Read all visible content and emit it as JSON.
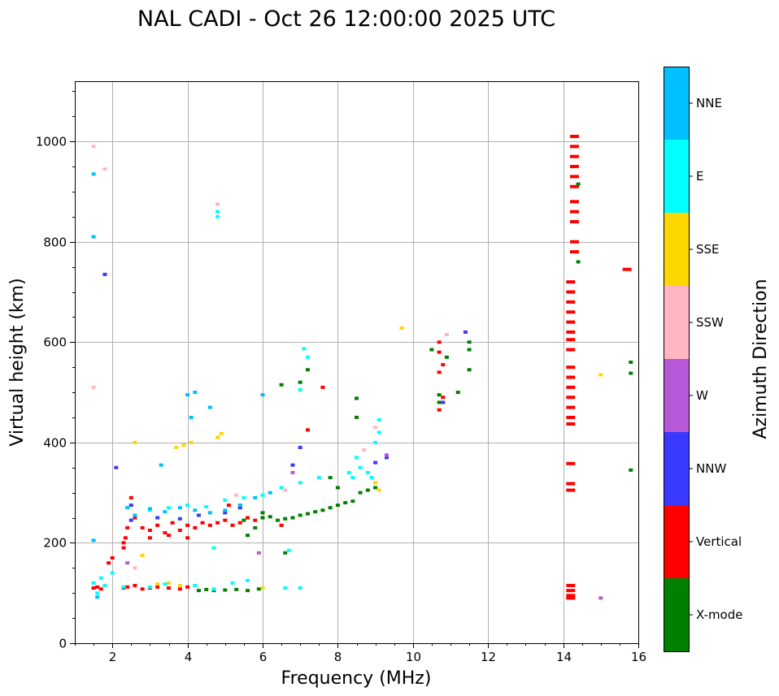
{
  "chart_data": {
    "type": "scatter",
    "title": "NAL CADI - Oct 26 12:00:00 2025 UTC",
    "xlabel": "Frequency (MHz)",
    "ylabel": "Virtual height (km)",
    "xlim": [
      1,
      16
    ],
    "ylim": [
      0,
      1120
    ],
    "xticks": [
      2,
      4,
      6,
      8,
      10,
      12,
      14,
      16
    ],
    "yticks": [
      0,
      200,
      400,
      600,
      800,
      1000
    ],
    "grid": true,
    "colorbar": {
      "title": "Azimuth Direction",
      "categories": [
        {
          "name": "X-mode",
          "color": "#008000"
        },
        {
          "name": "Vertical",
          "color": "#ff0000"
        },
        {
          "name": "NNW",
          "color": "#3a3aff"
        },
        {
          "name": "W",
          "color": "#b658d8"
        },
        {
          "name": "SSW",
          "color": "#ffb6c1"
        },
        {
          "name": "SSE",
          "color": "#ffd700"
        },
        {
          "name": "E",
          "color": "#00ffff"
        },
        {
          "name": "NNE",
          "color": "#00bfff"
        }
      ]
    },
    "series": [
      {
        "name": "Vertical",
        "points": [
          [
            1.5,
            110
          ],
          [
            1.6,
            112
          ],
          [
            1.7,
            108
          ],
          [
            1.8,
            115
          ],
          [
            1.9,
            160
          ],
          [
            2.0,
            170
          ],
          [
            2.3,
            110
          ],
          [
            2.4,
            112
          ],
          [
            2.6,
            115
          ],
          [
            2.8,
            108
          ],
          [
            3.0,
            110
          ],
          [
            3.2,
            112
          ],
          [
            3.5,
            110
          ],
          [
            3.8,
            108
          ],
          [
            4.0,
            112
          ],
          [
            2.3,
            190
          ],
          [
            2.35,
            210
          ],
          [
            2.4,
            230
          ],
          [
            2.3,
            200
          ],
          [
            2.5,
            290
          ],
          [
            2.6,
            250
          ],
          [
            2.8,
            230
          ],
          [
            3.0,
            225
          ],
          [
            3.2,
            235
          ],
          [
            3.4,
            220
          ],
          [
            3.6,
            240
          ],
          [
            3.8,
            225
          ],
          [
            4.0,
            235
          ],
          [
            4.2,
            230
          ],
          [
            4.4,
            240
          ],
          [
            4.6,
            235
          ],
          [
            4.8,
            240
          ],
          [
            5.0,
            245
          ],
          [
            5.2,
            235
          ],
          [
            5.4,
            240
          ],
          [
            5.6,
            250
          ],
          [
            5.8,
            245
          ],
          [
            6.0,
            250
          ],
          [
            3.0,
            210
          ],
          [
            3.5,
            215
          ],
          [
            4.0,
            210
          ],
          [
            5.1,
            275
          ],
          [
            5.4,
            275
          ],
          [
            6.5,
            235
          ],
          [
            7.6,
            510
          ],
          [
            7.2,
            425
          ],
          [
            10.7,
            600
          ],
          [
            10.7,
            580
          ],
          [
            10.8,
            555
          ],
          [
            10.7,
            540
          ],
          [
            10.8,
            490
          ],
          [
            10.7,
            465
          ],
          [
            15.7,
            745
          ],
          [
            14.3,
            1010
          ],
          [
            14.3,
            990
          ],
          [
            14.3,
            970
          ],
          [
            14.3,
            950
          ],
          [
            14.3,
            930
          ],
          [
            14.3,
            910
          ],
          [
            14.3,
            880
          ],
          [
            14.3,
            860
          ],
          [
            14.3,
            840
          ],
          [
            14.3,
            800
          ],
          [
            14.3,
            780
          ],
          [
            14.2,
            720
          ],
          [
            14.2,
            700
          ],
          [
            14.2,
            680
          ],
          [
            14.2,
            660
          ],
          [
            14.2,
            640
          ],
          [
            14.2,
            620
          ],
          [
            14.2,
            605
          ],
          [
            14.2,
            585
          ],
          [
            14.2,
            550
          ],
          [
            14.2,
            530
          ],
          [
            14.2,
            510
          ],
          [
            14.2,
            490
          ],
          [
            14.2,
            470
          ],
          [
            14.2,
            450
          ],
          [
            14.2,
            437
          ],
          [
            14.2,
            358
          ],
          [
            14.2,
            318
          ],
          [
            14.2,
            305
          ],
          [
            14.2,
            115
          ],
          [
            14.2,
            105
          ],
          [
            14.2,
            95
          ],
          [
            14.2,
            90
          ]
        ]
      },
      {
        "name": "X-mode",
        "points": [
          [
            4.3,
            105
          ],
          [
            4.5,
            107
          ],
          [
            4.7,
            105
          ],
          [
            5.0,
            106
          ],
          [
            5.3,
            107
          ],
          [
            5.6,
            105
          ],
          [
            5.9,
            108
          ],
          [
            6.0,
            250
          ],
          [
            6.2,
            252
          ],
          [
            6.4,
            245
          ],
          [
            6.6,
            248
          ],
          [
            6.8,
            250
          ],
          [
            7.0,
            255
          ],
          [
            7.2,
            258
          ],
          [
            7.4,
            262
          ],
          [
            7.6,
            265
          ],
          [
            7.8,
            270
          ],
          [
            8.0,
            275
          ],
          [
            8.2,
            280
          ],
          [
            8.4,
            283
          ],
          [
            8.6,
            300
          ],
          [
            8.8,
            305
          ],
          [
            9.0,
            310
          ],
          [
            5.5,
            245
          ],
          [
            5.8,
            230
          ],
          [
            5.6,
            215
          ],
          [
            6.0,
            260
          ],
          [
            7.0,
            520
          ],
          [
            7.2,
            545
          ],
          [
            6.5,
            515
          ],
          [
            8.5,
            450
          ],
          [
            8.5,
            488
          ],
          [
            7.8,
            330
          ],
          [
            8.0,
            310
          ],
          [
            10.5,
            585
          ],
          [
            10.9,
            570
          ],
          [
            11.2,
            500
          ],
          [
            11.5,
            600
          ],
          [
            11.5,
            585
          ],
          [
            11.5,
            545
          ],
          [
            10.7,
            495
          ],
          [
            10.7,
            480
          ],
          [
            14.4,
            915
          ],
          [
            14.4,
            760
          ],
          [
            15.8,
            560
          ],
          [
            15.8,
            538
          ],
          [
            15.8,
            345
          ],
          [
            6.6,
            180
          ]
        ]
      },
      {
        "name": "NNW",
        "points": [
          [
            1.8,
            735
          ],
          [
            2.1,
            350
          ],
          [
            2.5,
            275
          ],
          [
            3.2,
            250
          ],
          [
            3.8,
            248
          ],
          [
            4.3,
            255
          ],
          [
            5.0,
            260
          ],
          [
            5.4,
            270
          ],
          [
            6.8,
            355
          ],
          [
            7.0,
            390
          ],
          [
            9.0,
            360
          ],
          [
            9.3,
            370
          ],
          [
            11.4,
            620
          ],
          [
            10.8,
            480
          ],
          [
            2.5,
            245
          ]
        ]
      },
      {
        "name": "W",
        "points": [
          [
            15.0,
            90
          ],
          [
            9.3,
            375
          ],
          [
            6.8,
            340
          ],
          [
            5.9,
            180
          ],
          [
            2.4,
            160
          ]
        ]
      },
      {
        "name": "SSW",
        "points": [
          [
            1.5,
            990
          ],
          [
            1.5,
            510
          ],
          [
            1.8,
            945
          ],
          [
            4.8,
            875
          ],
          [
            10.9,
            615
          ],
          [
            9.0,
            430
          ],
          [
            8.7,
            385
          ],
          [
            5.3,
            295
          ],
          [
            6.6,
            305
          ],
          [
            2.6,
            150
          ]
        ]
      },
      {
        "name": "SSE",
        "points": [
          [
            9.7,
            628
          ],
          [
            15.0,
            535
          ],
          [
            3.7,
            390
          ],
          [
            3.9,
            395
          ],
          [
            4.1,
            400
          ],
          [
            4.9,
            418
          ],
          [
            2.6,
            400
          ],
          [
            9.1,
            305
          ],
          [
            9.0,
            320
          ],
          [
            3.5,
            120
          ],
          [
            3.8,
            115
          ],
          [
            2.8,
            175
          ],
          [
            3.2,
            118
          ],
          [
            6.0,
            110
          ],
          [
            4.8,
            410
          ]
        ]
      },
      {
        "name": "E",
        "points": [
          [
            1.5,
            120
          ],
          [
            1.6,
            100
          ],
          [
            1.7,
            130
          ],
          [
            1.8,
            115
          ],
          [
            2.0,
            140
          ],
          [
            2.3,
            112
          ],
          [
            3.0,
            112
          ],
          [
            3.4,
            118
          ],
          [
            4.2,
            115
          ],
          [
            4.7,
            108
          ],
          [
            5.2,
            120
          ],
          [
            5.6,
            125
          ],
          [
            6.6,
            110
          ],
          [
            7.0,
            110
          ],
          [
            4.8,
            860
          ],
          [
            4.8,
            850
          ],
          [
            7.1,
            587
          ],
          [
            7.2,
            570
          ],
          [
            7.0,
            505
          ],
          [
            8.5,
            370
          ],
          [
            8.6,
            350
          ],
          [
            8.8,
            340
          ],
          [
            8.9,
            330
          ],
          [
            9.0,
            400
          ],
          [
            9.1,
            420
          ],
          [
            9.1,
            445
          ],
          [
            8.4,
            330
          ],
          [
            8.3,
            340
          ],
          [
            4.7,
            190
          ],
          [
            6.7,
            185
          ],
          [
            3.0,
            265
          ],
          [
            3.5,
            270
          ],
          [
            4.0,
            275
          ],
          [
            4.5,
            272
          ],
          [
            5.0,
            285
          ],
          [
            5.5,
            290
          ],
          [
            6.0,
            295
          ],
          [
            6.5,
            310
          ],
          [
            7.0,
            320
          ],
          [
            7.5,
            330
          ]
        ]
      },
      {
        "name": "NNE",
        "points": [
          [
            1.5,
            935
          ],
          [
            1.5,
            810
          ],
          [
            1.5,
            205
          ],
          [
            4.0,
            495
          ],
          [
            4.2,
            500
          ],
          [
            4.1,
            450
          ],
          [
            3.3,
            355
          ],
          [
            2.4,
            270
          ],
          [
            2.6,
            255
          ],
          [
            3.0,
            268
          ],
          [
            3.4,
            262
          ],
          [
            3.8,
            270
          ],
          [
            4.2,
            265
          ],
          [
            4.6,
            260
          ],
          [
            5.0,
            265
          ],
          [
            5.4,
            275
          ],
          [
            5.8,
            290
          ],
          [
            6.2,
            300
          ],
          [
            4.6,
            470
          ],
          [
            6.0,
            495
          ],
          [
            1.6,
            92
          ]
        ]
      }
    ]
  }
}
